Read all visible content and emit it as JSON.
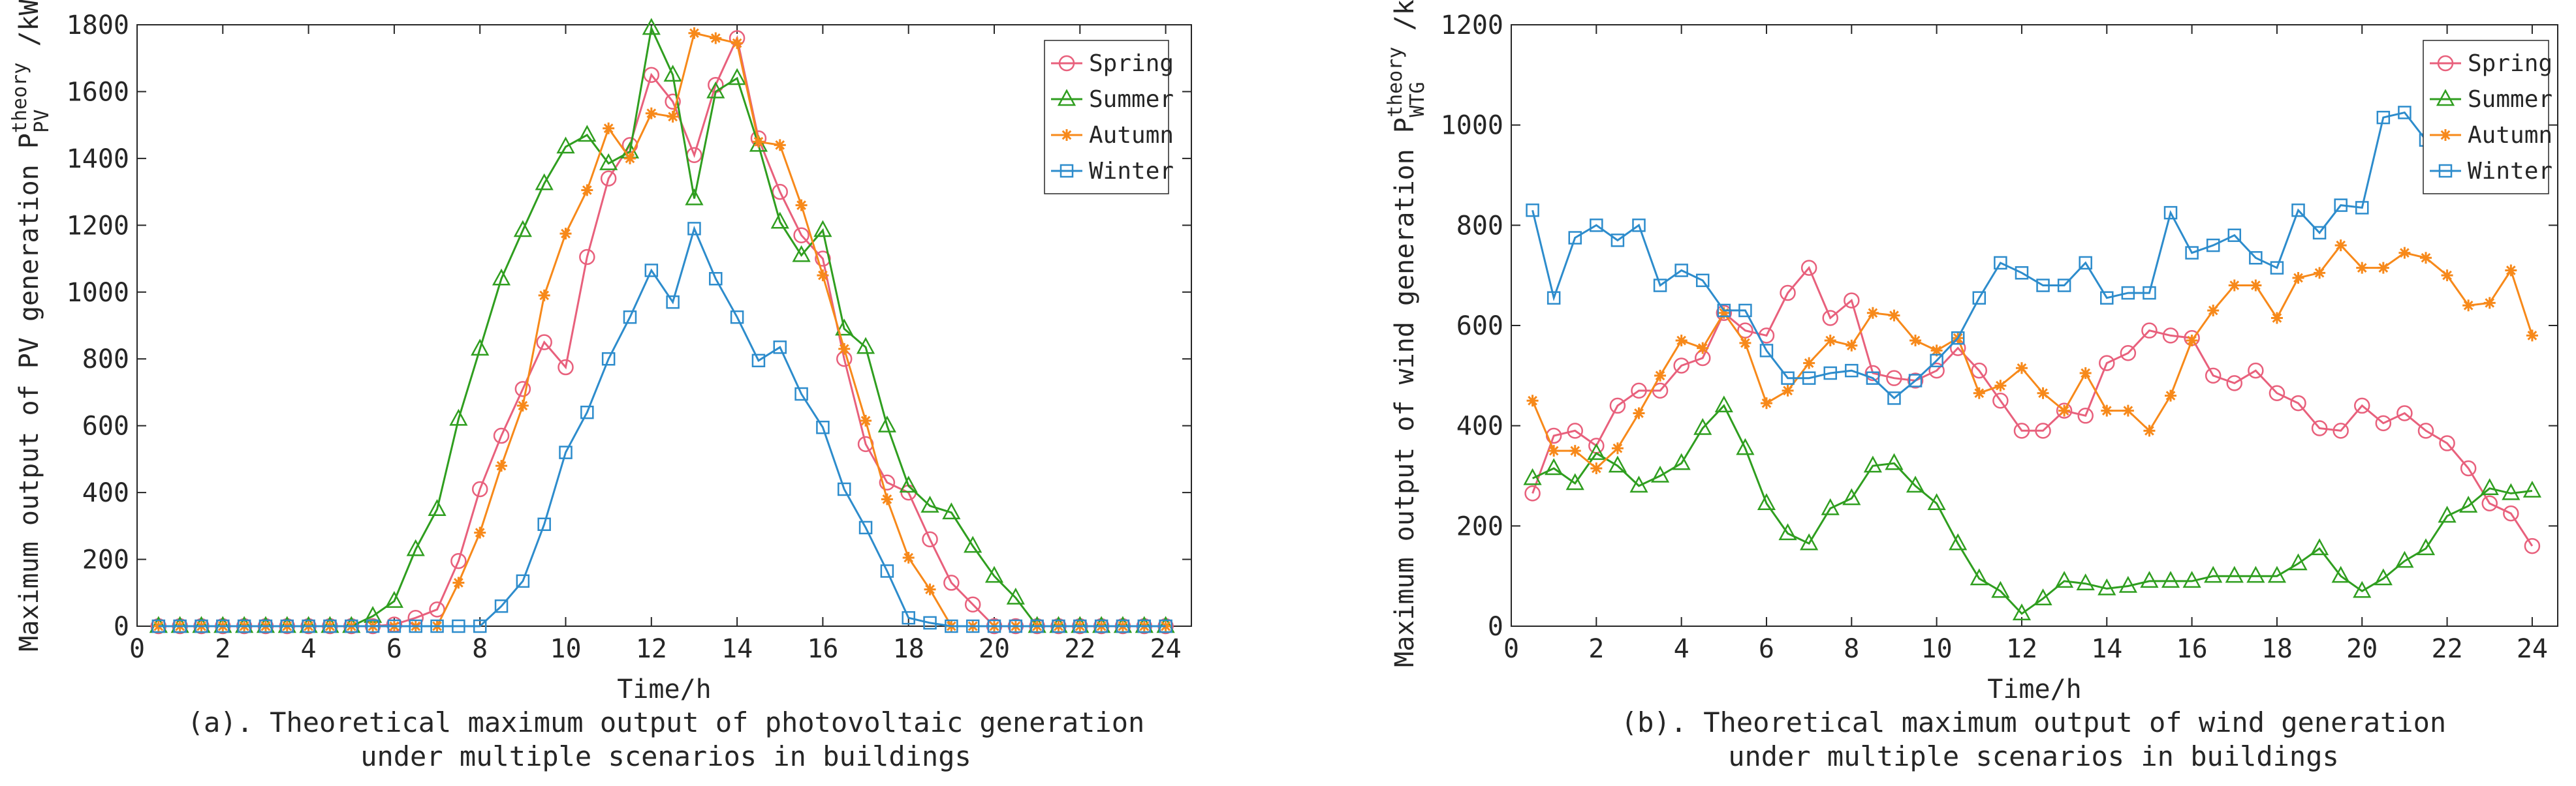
{
  "chart_data": [
    {
      "type": "line",
      "title": "",
      "caption": [
        "(a). Theoretical maximum output of photovoltaic generation",
        "under multiple scenarios in buildings"
      ],
      "xlabel": "Time/h",
      "ylabel": {
        "prefix": "Maximum output of PV generation P",
        "sup": "theory",
        "sub": "PV",
        "suffix": " /kW"
      },
      "xlim": [
        0,
        24.6
      ],
      "ylim": [
        0,
        1800
      ],
      "xticks": [
        0,
        2,
        4,
        6,
        8,
        10,
        12,
        14,
        16,
        18,
        20,
        22,
        24
      ],
      "yticks": [
        0,
        200,
        400,
        600,
        800,
        1000,
        1200,
        1400,
        1600,
        1800
      ],
      "grid": false,
      "legend": "top-right",
      "x": [
        0.5,
        1,
        1.5,
        2,
        2.5,
        3,
        3.5,
        4,
        4.5,
        5,
        5.5,
        6,
        6.5,
        7,
        7.5,
        8,
        8.5,
        9,
        9.5,
        10,
        10.5,
        11,
        11.5,
        12,
        12.5,
        13,
        13.5,
        14,
        14.5,
        15,
        15.5,
        16,
        16.5,
        17,
        17.5,
        18,
        18.5,
        19,
        19.5,
        20,
        20.5,
        21,
        21.5,
        22,
        22.5,
        23,
        23.5,
        24
      ],
      "series": [
        {
          "name": "Spring",
          "color": "#e8607c",
          "marker": "circle",
          "values": [
            0,
            0,
            0,
            0,
            0,
            0,
            0,
            0,
            0,
            0,
            0,
            5,
            25,
            50,
            195,
            410,
            570,
            710,
            850,
            775,
            1105,
            1340,
            1440,
            1650,
            1570,
            1410,
            1620,
            1760,
            1460,
            1300,
            1170,
            1100,
            800,
            545,
            430,
            400,
            260,
            130,
            65,
            0,
            0,
            0,
            0,
            0,
            0,
            0,
            0,
            0
          ]
        },
        {
          "name": "Summer",
          "color": "#2f9e1f",
          "marker": "triangle",
          "values": [
            0,
            0,
            0,
            0,
            0,
            0,
            0,
            0,
            0,
            0,
            30,
            75,
            230,
            350,
            620,
            830,
            1040,
            1185,
            1325,
            1435,
            1470,
            1385,
            1420,
            1790,
            1650,
            1280,
            1600,
            1640,
            1440,
            1210,
            1110,
            1185,
            890,
            835,
            600,
            420,
            360,
            340,
            240,
            150,
            85,
            0,
            0,
            0,
            0,
            0,
            0,
            0
          ]
        },
        {
          "name": "Autumn",
          "color": "#f7891a",
          "marker": "star",
          "values": [
            0,
            0,
            0,
            0,
            0,
            0,
            0,
            0,
            0,
            0,
            0,
            0,
            0,
            0,
            130,
            280,
            480,
            660,
            990,
            1175,
            1305,
            1490,
            1400,
            1535,
            1525,
            1775,
            1760,
            1745,
            1450,
            1440,
            1260,
            1050,
            830,
            615,
            380,
            205,
            110,
            0,
            0,
            0,
            0,
            0,
            0,
            0,
            0,
            0,
            0,
            0
          ]
        },
        {
          "name": "Winter",
          "color": "#2d8ccc",
          "marker": "square",
          "values": [
            0,
            0,
            0,
            0,
            0,
            0,
            0,
            0,
            0,
            0,
            0,
            0,
            0,
            0,
            0,
            0,
            60,
            135,
            305,
            520,
            640,
            800,
            925,
            1065,
            970,
            1190,
            1040,
            925,
            795,
            835,
            695,
            595,
            410,
            295,
            165,
            25,
            10,
            0,
            0,
            0,
            0,
            0,
            0,
            0,
            0,
            0,
            0,
            0
          ]
        }
      ]
    },
    {
      "type": "line",
      "title": "",
      "caption": [
        "(b). Theoretical maximum output of wind generation",
        "under multiple scenarios in buildings"
      ],
      "xlabel": "Time/h",
      "ylabel": {
        "prefix": "Maximum output of wind generation P",
        "sup": "theory",
        "sub": "WTG",
        "suffix": " /kW"
      },
      "xlim": [
        0,
        24.6
      ],
      "ylim": [
        0,
        1200
      ],
      "xticks": [
        0,
        2,
        4,
        6,
        8,
        10,
        12,
        14,
        16,
        18,
        20,
        22,
        24
      ],
      "yticks": [
        0,
        200,
        400,
        600,
        800,
        1000,
        1200
      ],
      "grid": false,
      "legend": "top-right",
      "x": [
        0.5,
        1,
        1.5,
        2,
        2.5,
        3,
        3.5,
        4,
        4.5,
        5,
        5.5,
        6,
        6.5,
        7,
        7.5,
        8,
        8.5,
        9,
        9.5,
        10,
        10.5,
        11,
        11.5,
        12,
        12.5,
        13,
        13.5,
        14,
        14.5,
        15,
        15.5,
        16,
        16.5,
        17,
        17.5,
        18,
        18.5,
        19,
        19.5,
        20,
        20.5,
        21,
        21.5,
        22,
        22.5,
        23,
        23.5,
        24
      ],
      "series": [
        {
          "name": "Spring",
          "color": "#e8607c",
          "marker": "circle",
          "values": [
            265,
            380,
            390,
            360,
            440,
            470,
            470,
            520,
            535,
            625,
            590,
            580,
            665,
            715,
            615,
            650,
            505,
            495,
            490,
            510,
            555,
            510,
            450,
            390,
            390,
            430,
            420,
            525,
            545,
            590,
            580,
            575,
            500,
            485,
            510,
            465,
            445,
            395,
            390,
            440,
            405,
            425,
            390,
            365,
            315,
            245,
            225,
            160
          ]
        },
        {
          "name": "Summer",
          "color": "#2f9e1f",
          "marker": "triangle",
          "values": [
            295,
            315,
            285,
            345,
            320,
            280,
            300,
            325,
            395,
            440,
            355,
            245,
            185,
            165,
            235,
            255,
            320,
            325,
            280,
            245,
            165,
            95,
            70,
            25,
            55,
            90,
            85,
            75,
            80,
            90,
            90,
            90,
            100,
            100,
            100,
            100,
            125,
            155,
            100,
            70,
            95,
            130,
            155,
            220,
            240,
            275,
            265,
            270
          ]
        },
        {
          "name": "Autumn",
          "color": "#f7891a",
          "marker": "star",
          "values": [
            450,
            350,
            350,
            315,
            355,
            425,
            500,
            570,
            555,
            625,
            565,
            445,
            470,
            525,
            570,
            560,
            625,
            620,
            570,
            550,
            575,
            465,
            480,
            515,
            465,
            430,
            505,
            430,
            430,
            390,
            460,
            570,
            630,
            680,
            680,
            615,
            695,
            705,
            760,
            715,
            715,
            745,
            735,
            700,
            640,
            645,
            710,
            580
          ]
        },
        {
          "name": "Winter",
          "color": "#2d8ccc",
          "marker": "square",
          "values": [
            830,
            655,
            775,
            800,
            770,
            800,
            680,
            710,
            690,
            630,
            630,
            550,
            495,
            495,
            505,
            510,
            495,
            455,
            490,
            530,
            575,
            655,
            725,
            705,
            680,
            680,
            725,
            655,
            665,
            665,
            825,
            745,
            760,
            780,
            735,
            715,
            830,
            785,
            840,
            835,
            1015,
            1025,
            970,
            null,
            null,
            null,
            null,
            null
          ]
        }
      ]
    }
  ]
}
